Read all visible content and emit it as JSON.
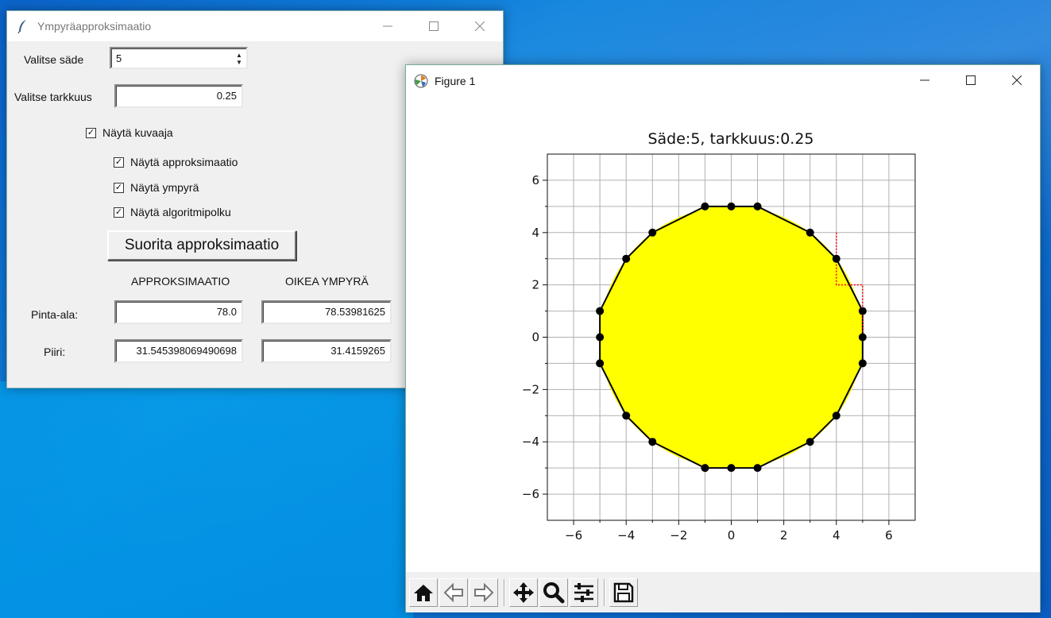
{
  "tk_window": {
    "title": "Ympyräapproksimaatio",
    "radius_label": "Valitse säde",
    "radius_value": "5",
    "precision_label": "Valitse tarkkuus",
    "precision_value": "0.25",
    "checkboxes": [
      {
        "label": "Näytä kuvaaja",
        "checked": true
      },
      {
        "label": "Näytä approksimaatio",
        "checked": true
      },
      {
        "label": "Näytä ympyrä",
        "checked": true
      },
      {
        "label": "Näytä algoritmipolku",
        "checked": true
      }
    ],
    "run_button": "Suorita approksimaatio",
    "col_approx": "APPROKSIMAATIO",
    "col_true": "OIKEA YMPYRÄ",
    "area_label": "Pinta-ala:",
    "area_approx": "78.0",
    "area_true": "78.53981625",
    "perimeter_label": "Piiri:",
    "perimeter_approx": "31.545398069490698",
    "perimeter_true": "31.4159265"
  },
  "figure_window": {
    "title": "Figure 1",
    "toolbar": [
      "home-icon",
      "back-icon",
      "forward-icon",
      "pan-icon",
      "zoom-icon",
      "configure-icon",
      "save-icon"
    ]
  },
  "chart_data": {
    "type": "scatter",
    "title": "Säde:5, tarkkuus:0.25",
    "xlim": [
      -7,
      7
    ],
    "ylim": [
      -7,
      7
    ],
    "xticks": [
      "−6",
      "−4",
      "−2",
      "0",
      "2",
      "4",
      "6"
    ],
    "yticks": [
      "6",
      "4",
      "2",
      "0",
      "−2",
      "−4",
      "−6"
    ],
    "grid": true,
    "circle": {
      "radius": 5,
      "fill": "#ffff00"
    },
    "polygon_points": [
      [
        -1,
        5
      ],
      [
        0,
        5
      ],
      [
        1,
        5
      ],
      [
        3,
        4
      ],
      [
        4,
        3
      ],
      [
        5,
        1
      ],
      [
        5,
        0
      ],
      [
        5,
        -1
      ],
      [
        4,
        -3
      ],
      [
        3,
        -4
      ],
      [
        1,
        -5
      ],
      [
        0,
        -5
      ],
      [
        -1,
        -5
      ],
      [
        -3,
        -4
      ],
      [
        -4,
        -3
      ],
      [
        -5,
        -1
      ],
      [
        -5,
        0
      ],
      [
        -5,
        1
      ],
      [
        -4,
        3
      ],
      [
        -3,
        4
      ]
    ],
    "path_points": [
      [
        4,
        4
      ],
      [
        4,
        3
      ],
      [
        4,
        2
      ],
      [
        5,
        2
      ],
      [
        5,
        1
      ],
      [
        5,
        0
      ]
    ],
    "colors": {
      "polygon": "#000000",
      "marker": "#000000",
      "path": "#ff0000"
    }
  }
}
